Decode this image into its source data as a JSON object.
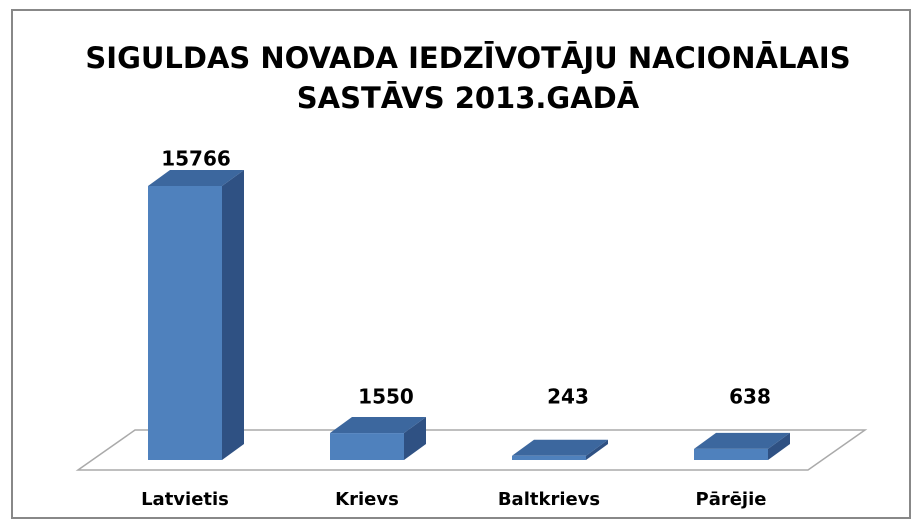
{
  "chart_data": {
    "type": "bar3d",
    "title": [
      "SIGULDAS NOVADA IEDZĪVOTĀJU NACIONĀLAIS",
      "SASTĀVS 2013.GADĀ"
    ],
    "categories": [
      "Latvietis",
      "Krievs",
      "Baltkrievs",
      "Pārējie"
    ],
    "values": [
      15766,
      1550,
      243,
      638
    ],
    "color": "#4f81bd"
  }
}
